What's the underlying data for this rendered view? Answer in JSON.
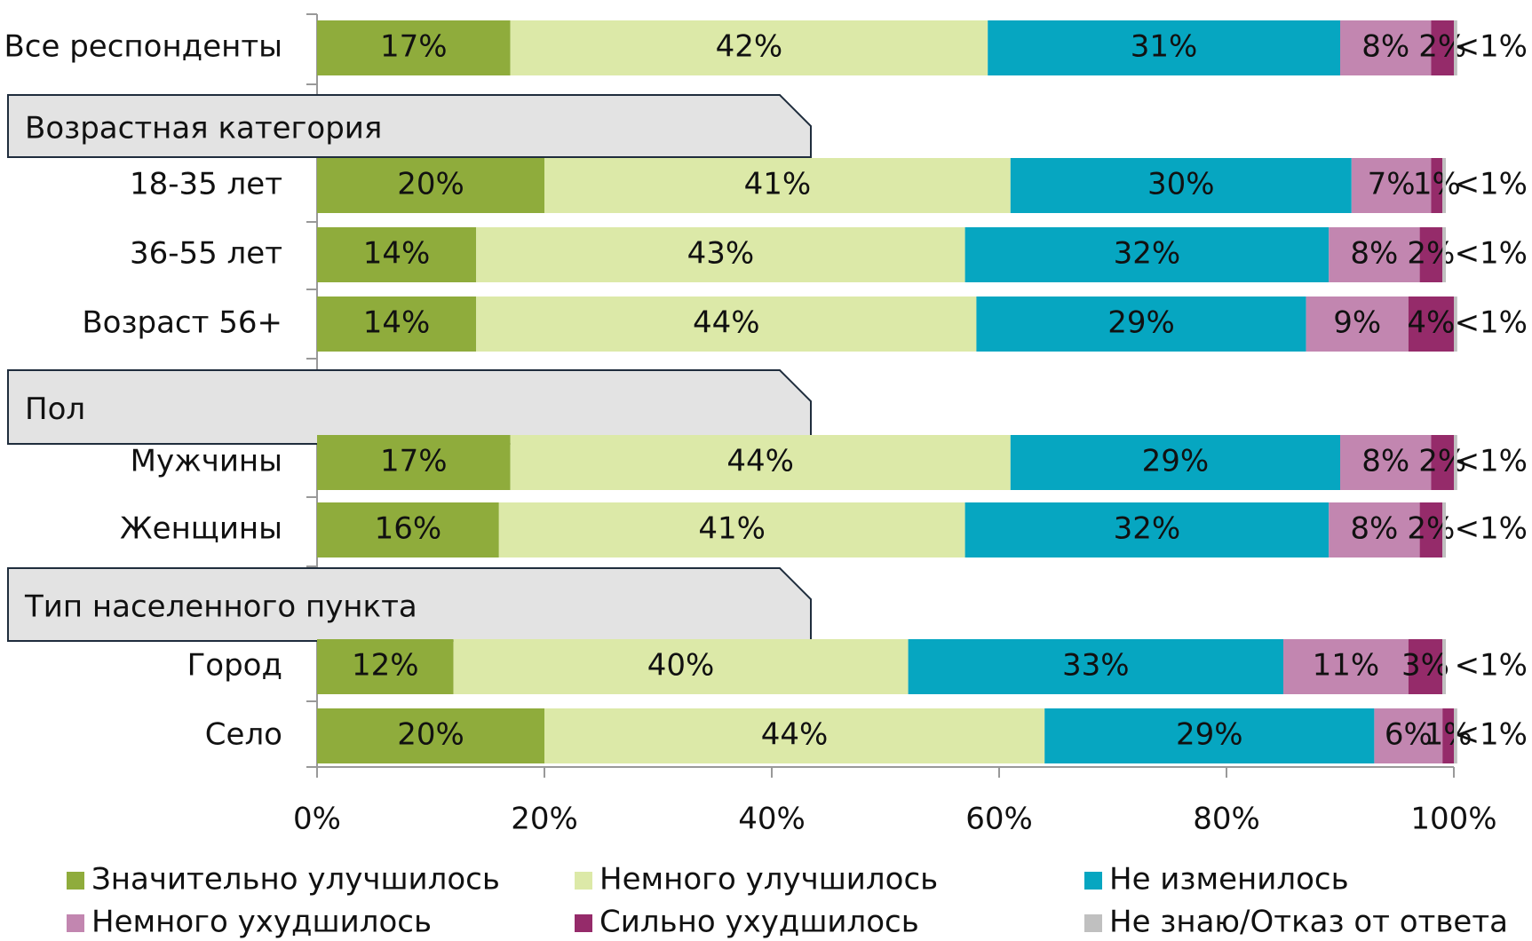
{
  "chart_data": {
    "type": "stacked_bar_horizontal",
    "categories": [
      "Все респонденты",
      "18-35 лет",
      "36-55 лет",
      "Возраст 56+",
      "Мужчины",
      "Женщины",
      "Город",
      "Село"
    ],
    "group_headers": [
      "Возрастная категория",
      "Пол",
      "Тип населенного пункта"
    ],
    "series": [
      {
        "name": "Значительно улучшилось",
        "color": "#8fac3c",
        "values": [
          17,
          20,
          14,
          14,
          17,
          16,
          12,
          20
        ],
        "value_labels": [
          "17%",
          "20%",
          "14%",
          "14%",
          "17%",
          "16%",
          "12%",
          "20%"
        ]
      },
      {
        "name": "Немного улучшилось",
        "color": "#dce9a8",
        "values": [
          42,
          41,
          43,
          44,
          44,
          41,
          40,
          44
        ],
        "value_labels": [
          "42%",
          "41%",
          "43%",
          "44%",
          "44%",
          "41%",
          "40%",
          "44%"
        ]
      },
      {
        "name": "Не изменилось",
        "color": "#06a6c1",
        "values": [
          31,
          30,
          32,
          29,
          29,
          32,
          33,
          29
        ],
        "value_labels": [
          "31%",
          "30%",
          "32%",
          "29%",
          "29%",
          "32%",
          "33%",
          "29%"
        ]
      },
      {
        "name": "Немного ухудшилось",
        "color": "#c286b0",
        "values": [
          8,
          7,
          8,
          9,
          8,
          8,
          11,
          6
        ],
        "value_labels": [
          "8%",
          "7%",
          "8%",
          "9%",
          "8%",
          "8%",
          "11%",
          "6%"
        ]
      },
      {
        "name": "Сильно ухудшилось",
        "color": "#952b6a",
        "values": [
          2,
          1,
          2,
          4,
          2,
          2,
          3,
          1
        ],
        "value_labels": [
          "2%",
          "1%",
          "2%",
          "4%",
          "2%",
          "2%",
          "3%",
          "1%"
        ]
      },
      {
        "name": "Не знаю/Отказ от ответа",
        "color": "#c0c0c0",
        "values": [
          0.3,
          0.3,
          0.3,
          0.3,
          0.3,
          0.3,
          0.3,
          0.3
        ],
        "value_labels": [
          "<1%",
          "<1%",
          "<1%",
          "<1%",
          "<1%",
          "<1%",
          "<1%",
          "<1%"
        ]
      }
    ],
    "xlim": [
      0,
      100
    ],
    "xticks": [
      {
        "value": 0,
        "label": "0%"
      },
      {
        "value": 20,
        "label": "20%"
      },
      {
        "value": 40,
        "label": "40%"
      },
      {
        "value": 60,
        "label": "60%"
      },
      {
        "value": 80,
        "label": "80%"
      },
      {
        "value": 100,
        "label": "100%"
      }
    ],
    "legend": "bottom"
  }
}
